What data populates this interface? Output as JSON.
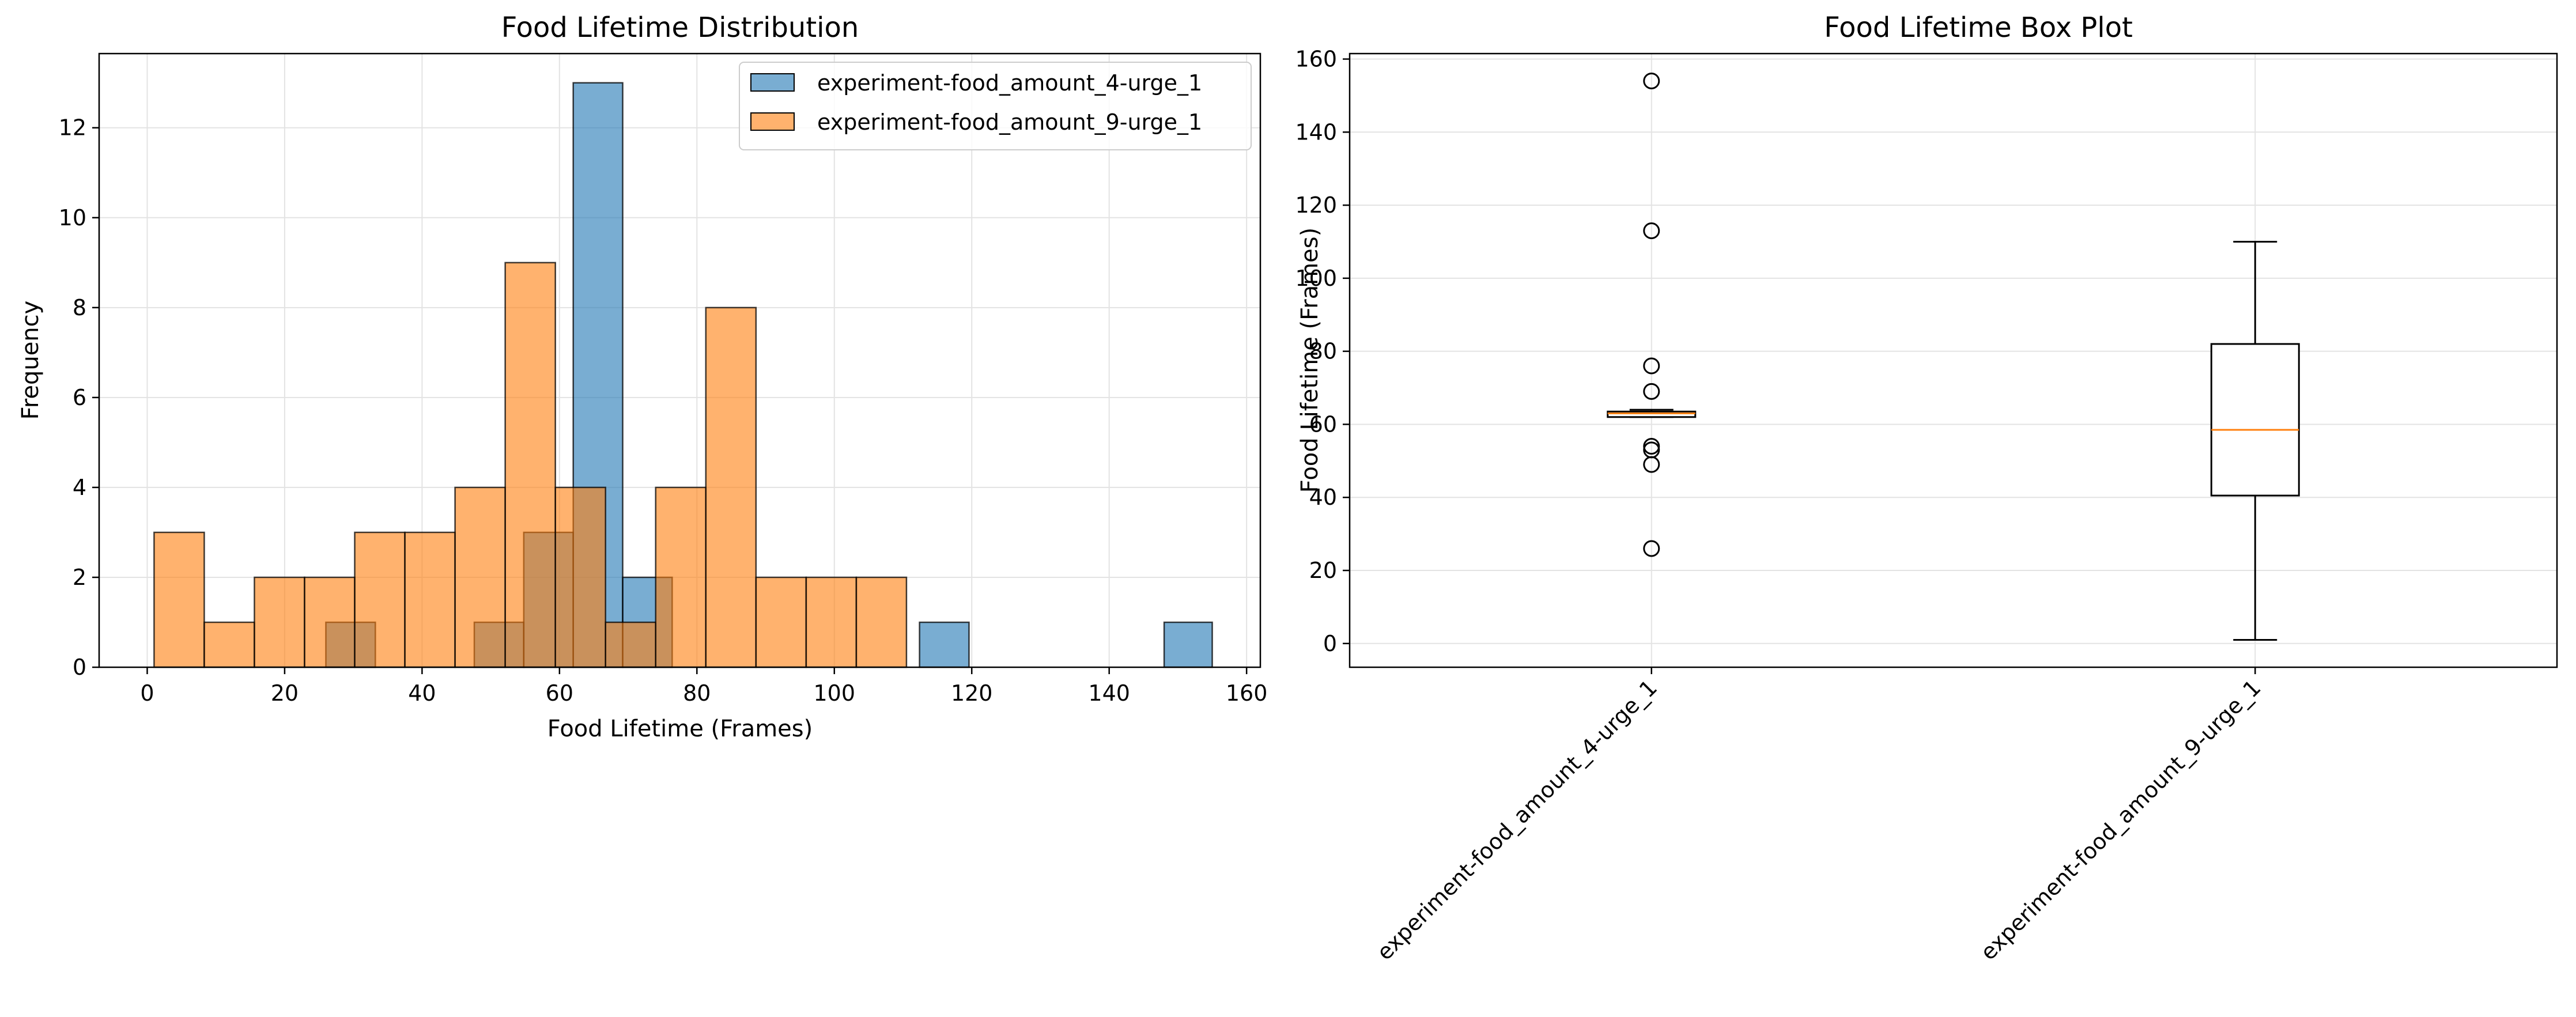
{
  "colors": {
    "series_a": "#1f77b4",
    "series_b": "#ff7f0e",
    "edge": "#000000",
    "grid": "#e3e3e3",
    "median": "#ff7f0e"
  },
  "chart_data": [
    {
      "type": "bar",
      "title": "Food Lifetime Distribution",
      "xlabel": "Food Lifetime (Frames)",
      "ylabel": "Frequency",
      "xlim": [
        -7,
        162
      ],
      "ylim": [
        0,
        13.65
      ],
      "xticks": [
        0,
        20,
        40,
        60,
        80,
        100,
        120,
        140,
        160
      ],
      "yticks": [
        0,
        2,
        4,
        6,
        8,
        10,
        12
      ],
      "grid": true,
      "legend_position": "top-right",
      "series": [
        {
          "name": "experiment-food_amount_4-urge_1",
          "color": "#1f77b4",
          "bins": [
            {
              "x0": 26.0,
              "x1": 33.2,
              "count": 1
            },
            {
              "x0": 47.6,
              "x1": 54.8,
              "count": 1
            },
            {
              "x0": 54.8,
              "x1": 62.0,
              "count": 3
            },
            {
              "x0": 62.0,
              "x1": 69.2,
              "count": 13
            },
            {
              "x0": 69.2,
              "x1": 76.4,
              "count": 2
            },
            {
              "x0": 112.4,
              "x1": 119.6,
              "count": 1
            },
            {
              "x0": 148.0,
              "x1": 155.0,
              "count": 1
            }
          ]
        },
        {
          "name": "experiment-food_amount_9-urge_1",
          "color": "#ff7f0e",
          "bins": [
            {
              "x0": 1.0,
              "x1": 8.3,
              "count": 3
            },
            {
              "x0": 8.3,
              "x1": 15.6,
              "count": 1
            },
            {
              "x0": 15.6,
              "x1": 22.9,
              "count": 2
            },
            {
              "x0": 22.9,
              "x1": 30.2,
              "count": 2
            },
            {
              "x0": 30.2,
              "x1": 37.5,
              "count": 3
            },
            {
              "x0": 37.5,
              "x1": 44.8,
              "count": 3
            },
            {
              "x0": 44.8,
              "x1": 52.1,
              "count": 4
            },
            {
              "x0": 52.1,
              "x1": 59.4,
              "count": 9
            },
            {
              "x0": 59.4,
              "x1": 66.7,
              "count": 4
            },
            {
              "x0": 66.7,
              "x1": 74.0,
              "count": 1
            },
            {
              "x0": 74.0,
              "x1": 81.3,
              "count": 4
            },
            {
              "x0": 81.3,
              "x1": 88.6,
              "count": 8
            },
            {
              "x0": 88.6,
              "x1": 95.9,
              "count": 2
            },
            {
              "x0": 95.9,
              "x1": 103.2,
              "count": 2
            },
            {
              "x0": 103.2,
              "x1": 110.5,
              "count": 2
            }
          ]
        }
      ]
    },
    {
      "type": "box",
      "title": "Food Lifetime Box Plot",
      "xlabel": "",
      "ylabel": "Food Lifetime (Frames)",
      "ylim": [
        -6.5,
        161.5
      ],
      "yticks": [
        0,
        20,
        40,
        60,
        80,
        100,
        120,
        140,
        160
      ],
      "grid": true,
      "categories": [
        "experiment-food_amount_4-urge_1",
        "experiment-food_amount_9-urge_1"
      ],
      "boxes": [
        {
          "whisker_low": 62,
          "q1": 62,
          "median": 63,
          "q3": 63.5,
          "whisker_high": 64,
          "outliers": [
            154,
            113,
            76,
            69,
            54,
            53,
            49,
            26
          ]
        },
        {
          "whisker_low": 1,
          "q1": 40.5,
          "median": 58.5,
          "q3": 82,
          "whisker_high": 110,
          "outliers": []
        }
      ]
    }
  ]
}
